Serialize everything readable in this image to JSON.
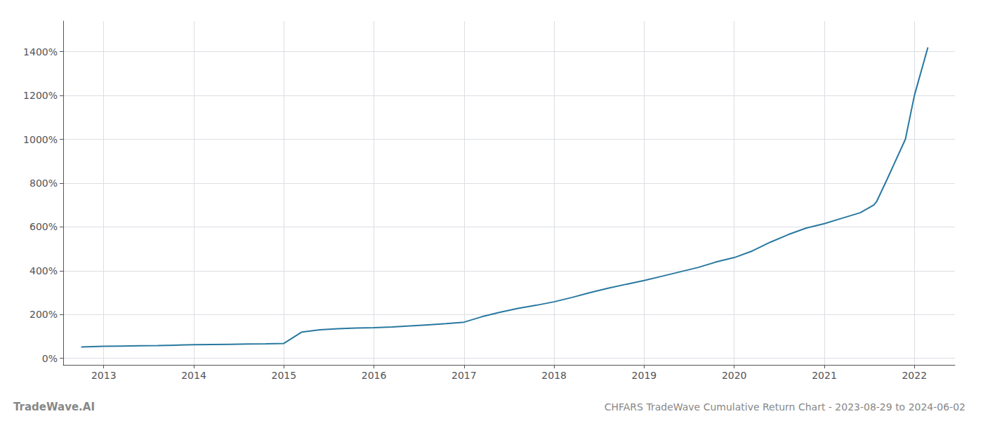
{
  "chart_data": {
    "type": "line",
    "title": "CHFARS TradeWave Cumulative Return Chart - 2023-08-29 to 2024-06-02",
    "annotations": [
      "TradeWave.AI"
    ],
    "color": "#2878a0",
    "grid": true,
    "x": [
      2012.75,
      2013.0,
      2013.2,
      2013.4,
      2013.6,
      2013.8,
      2014.0,
      2014.2,
      2014.4,
      2014.6,
      2014.8,
      2015.0,
      2015.2,
      2015.4,
      2015.6,
      2015.8,
      2016.0,
      2016.2,
      2016.4,
      2016.6,
      2016.8,
      2017.0,
      2017.2,
      2017.4,
      2017.6,
      2017.8,
      2018.0,
      2018.2,
      2018.4,
      2018.6,
      2018.8,
      2019.0,
      2019.2,
      2019.4,
      2019.6,
      2019.8,
      2020.0,
      2020.2,
      2020.4,
      2020.6,
      2020.8,
      2021.0,
      2021.2,
      2021.4,
      2021.55,
      2021.58,
      2021.7,
      2021.9,
      2022.0,
      2022.15
    ],
    "values": [
      52,
      55,
      56,
      57,
      58,
      60,
      62,
      63,
      64,
      65,
      66,
      68,
      120,
      130,
      135,
      138,
      140,
      143,
      148,
      153,
      158,
      165,
      190,
      210,
      228,
      242,
      258,
      278,
      300,
      320,
      338,
      355,
      375,
      395,
      415,
      440,
      460,
      490,
      530,
      565,
      595,
      615,
      640,
      665,
      700,
      715,
      820,
      1000,
      1200,
      1420
    ],
    "xlim": [
      2012.55,
      2022.45
    ],
    "xticks": [
      2013,
      2014,
      2015,
      2016,
      2017,
      2018,
      2019,
      2020,
      2021,
      2022
    ],
    "ylim": [
      -30,
      1540
    ],
    "yticks": [
      {
        "value": 0,
        "label": "0%"
      },
      {
        "value": 200,
        "label": "200%"
      },
      {
        "value": 400,
        "label": "400%"
      },
      {
        "value": 600,
        "label": "600%"
      },
      {
        "value": 800,
        "label": "800%"
      },
      {
        "value": 1000,
        "label": "1000%"
      },
      {
        "value": 1200,
        "label": "1200%"
      },
      {
        "value": 1400,
        "label": "1400%"
      }
    ]
  }
}
